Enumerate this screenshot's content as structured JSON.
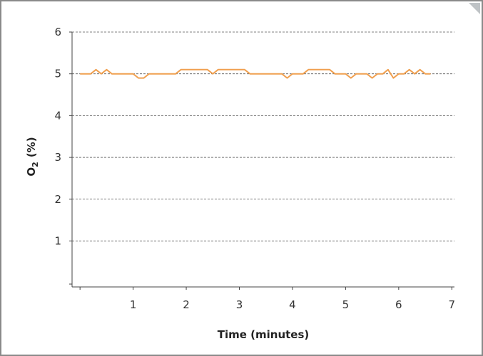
{
  "chart_data": {
    "type": "line",
    "xlabel": "Time (minutes)",
    "ylabel": "O",
    "ylabel_sub": "2",
    "ylabel_unit": "(%)",
    "xlim": [
      -0.15,
      7.05
    ],
    "ylim": [
      -0.1,
      6.0
    ],
    "x_ticks": [
      1,
      2,
      3,
      4,
      5,
      6,
      7
    ],
    "y_ticks": [
      1,
      2,
      3,
      4,
      5,
      6
    ],
    "x_tick_labels": [
      "1",
      "2",
      "3",
      "4",
      "5",
      "6",
      "7"
    ],
    "y_tick_labels": [
      "1",
      "2",
      "3",
      "4",
      "5",
      "6"
    ],
    "grid": true,
    "colors": {
      "line": "#f0a050",
      "grid": "#555555",
      "axis": "#444444"
    },
    "series": [
      {
        "values": [
          [
            0.0,
            5.0
          ],
          [
            0.1,
            5.0
          ],
          [
            0.2,
            5.0
          ],
          [
            0.3,
            5.1
          ],
          [
            0.4,
            5.0
          ],
          [
            0.5,
            5.1
          ],
          [
            0.6,
            5.0
          ],
          [
            0.7,
            5.0
          ],
          [
            0.8,
            5.0
          ],
          [
            0.9,
            5.0
          ],
          [
            1.0,
            5.0
          ],
          [
            1.1,
            4.9
          ],
          [
            1.2,
            4.9
          ],
          [
            1.3,
            5.0
          ],
          [
            1.4,
            5.0
          ],
          [
            1.5,
            5.0
          ],
          [
            1.6,
            5.0
          ],
          [
            1.7,
            5.0
          ],
          [
            1.8,
            5.0
          ],
          [
            1.9,
            5.1
          ],
          [
            2.0,
            5.1
          ],
          [
            2.1,
            5.1
          ],
          [
            2.2,
            5.1
          ],
          [
            2.3,
            5.1
          ],
          [
            2.4,
            5.1
          ],
          [
            2.5,
            5.0
          ],
          [
            2.6,
            5.1
          ],
          [
            2.7,
            5.1
          ],
          [
            2.8,
            5.1
          ],
          [
            2.9,
            5.1
          ],
          [
            3.0,
            5.1
          ],
          [
            3.1,
            5.1
          ],
          [
            3.2,
            5.0
          ],
          [
            3.3,
            5.0
          ],
          [
            3.4,
            5.0
          ],
          [
            3.5,
            5.0
          ],
          [
            3.6,
            5.0
          ],
          [
            3.7,
            5.0
          ],
          [
            3.8,
            5.0
          ],
          [
            3.9,
            4.9
          ],
          [
            4.0,
            5.0
          ],
          [
            4.1,
            5.0
          ],
          [
            4.2,
            5.0
          ],
          [
            4.3,
            5.1
          ],
          [
            4.4,
            5.1
          ],
          [
            4.5,
            5.1
          ],
          [
            4.6,
            5.1
          ],
          [
            4.7,
            5.1
          ],
          [
            4.8,
            5.0
          ],
          [
            4.9,
            5.0
          ],
          [
            5.0,
            5.0
          ],
          [
            5.1,
            4.9
          ],
          [
            5.2,
            5.0
          ],
          [
            5.3,
            5.0
          ],
          [
            5.4,
            5.0
          ],
          [
            5.5,
            4.9
          ],
          [
            5.6,
            5.0
          ],
          [
            5.7,
            5.0
          ],
          [
            5.8,
            5.1
          ],
          [
            5.9,
            4.9
          ],
          [
            6.0,
            5.0
          ],
          [
            6.1,
            5.0
          ],
          [
            6.2,
            5.1
          ],
          [
            6.3,
            5.0
          ],
          [
            6.4,
            5.1
          ],
          [
            6.5,
            5.0
          ],
          [
            6.6,
            5.0
          ]
        ]
      }
    ]
  }
}
